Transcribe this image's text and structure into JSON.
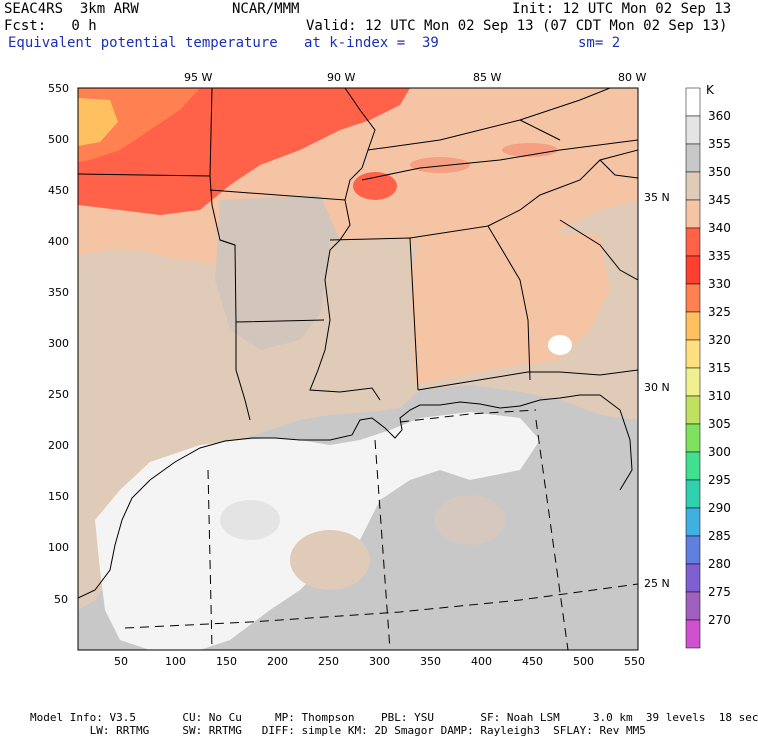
{
  "header": {
    "model": "SEAC4RS  3km ARW",
    "org": "NCAR/MMM",
    "init": "Init: 12 UTC Mon 02 Sep 13",
    "fcst": "Fcst:   0 h",
    "valid": "Valid: 12 UTC Mon 02 Sep 13 (07 CDT Mon 02 Sep 13)",
    "field": "Equivalent potential temperature",
    "level": "at k-index =  39",
    "smooth": "sm= 2"
  },
  "axes": {
    "x_ticks": [
      "50",
      "100",
      "150",
      "200",
      "250",
      "300",
      "350",
      "400",
      "450",
      "500",
      "550"
    ],
    "y_ticks": [
      "50",
      "100",
      "150",
      "200",
      "250",
      "300",
      "350",
      "400",
      "450",
      "500",
      "550"
    ],
    "lon_labels": [
      "95 W",
      "90 W",
      "85 W",
      "80 W"
    ],
    "lat_labels": [
      "35 N",
      "30 N",
      "25 N"
    ]
  },
  "colorbar": {
    "unit": "K",
    "labels": [
      "360",
      "355",
      "350",
      "345",
      "340",
      "335",
      "330",
      "325",
      "320",
      "315",
      "310",
      "305",
      "300",
      "295",
      "290",
      "285",
      "280",
      "275",
      "270"
    ],
    "colors": [
      "#ffffff",
      "#e4e4e4",
      "#c8c8c8",
      "#e0cbb8",
      "#f5c4a5",
      "#ff6248",
      "#ff4030",
      "#ff8050",
      "#ffc060",
      "#ffe080",
      "#f0f090",
      "#c0e060",
      "#80e060",
      "#40e090",
      "#30d0b0",
      "#40b0e0",
      "#6080e0",
      "#8060d0",
      "#a060c0",
      "#d050d0"
    ]
  },
  "footer": {
    "line1": "Model Info: V3.5       CU: No Cu     MP: Thompson    PBL: YSU       SF: Noah LSM     3.0 km  39 levels  18 sec",
    "line2": "         LW: RRTMG     SW: RRTMG   DIFF: simple KM: 2D Smagor DAMP: Rayleigh3  SFLAY: Rev MM5"
  }
}
